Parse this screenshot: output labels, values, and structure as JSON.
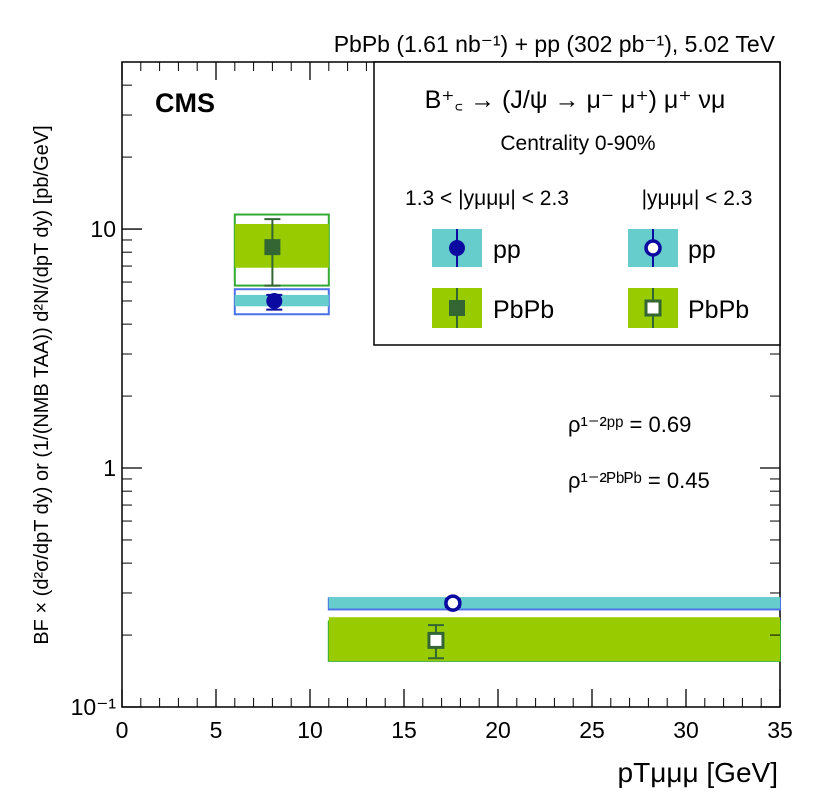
{
  "header": {
    "lumi_text": "PbPb (1.61 nb⁻¹) + pp (302 pb⁻¹), 5.02 TeV",
    "cms_label": "CMS"
  },
  "legend": {
    "decay": "B⁺꜀ → (J/ψ → μ⁻ μ⁺) μ⁺ νμ",
    "centrality": "Centrality 0-90%",
    "col1_header": "1.3 < |yμμμ| < 2.3",
    "col2_header": "|yμμμ| < 2.3",
    "pp_label": "pp",
    "pbpb_label": "PbPb"
  },
  "annotations": {
    "rho_pp": "ρ¹⁻²ᵖᵖ = 0.69",
    "rho_pbpb": "ρ¹⁻²ᴾᵇᴾᵇ = 0.45"
  },
  "colors": {
    "pp_marker": "#0a0aa0",
    "pp_box": "#66cccc",
    "pp_outline": "#4a72e8",
    "pbpb_marker": "#336633",
    "pbpb_box": "#99cc00",
    "pbpb_outline": "#33aa33"
  },
  "chart_data": {
    "type": "scatter",
    "title": "",
    "xlabel": "pTμμμ [GeV]",
    "ylabel": "BF × (d²σ/dpT dy) or (1/(NMB TAA)) d²N/(dpT dy) [pb/GeV]",
    "xlim": [
      0,
      35
    ],
    "ylim": [
      0.1,
      50
    ],
    "yscale": "log",
    "x_ticks": [
      "0",
      "5",
      "10",
      "15",
      "20",
      "25",
      "30",
      "35"
    ],
    "y_ticks": [
      "10⁻¹",
      "1",
      "10"
    ],
    "series": [
      {
        "name": "pp 1.3 < |y| < 2.3",
        "marker": "filled-circle",
        "points": [
          {
            "x": 8.1,
            "y": 5.0,
            "bin": [
              6,
              11
            ],
            "sys": [
              4.4,
              5.6
            ],
            "stat": [
              4.6,
              5.3
            ]
          }
        ]
      },
      {
        "name": "PbPb 1.3 < |y| < 2.3",
        "marker": "filled-square",
        "points": [
          {
            "x": 8.0,
            "y": 8.4,
            "bin": [
              6,
              11
            ],
            "sys": [
              5.8,
              11.5
            ],
            "stat": [
              5.8,
              11.0
            ]
          }
        ]
      },
      {
        "name": "pp |y| < 2.3",
        "marker": "open-circle",
        "points": [
          {
            "x": 17.6,
            "y": 0.272,
            "bin": [
              11,
              35
            ],
            "sys": [
              0.256,
              0.285
            ],
            "stat": [
              0.262,
              0.282
            ]
          }
        ]
      },
      {
        "name": "PbPb |y| < 2.3",
        "marker": "open-square",
        "points": [
          {
            "x": 16.7,
            "y": 0.19,
            "bin": [
              11,
              35
            ],
            "sys": [
              0.156,
              0.228
            ],
            "stat": [
              0.16,
              0.22
            ]
          }
        ]
      }
    ]
  }
}
